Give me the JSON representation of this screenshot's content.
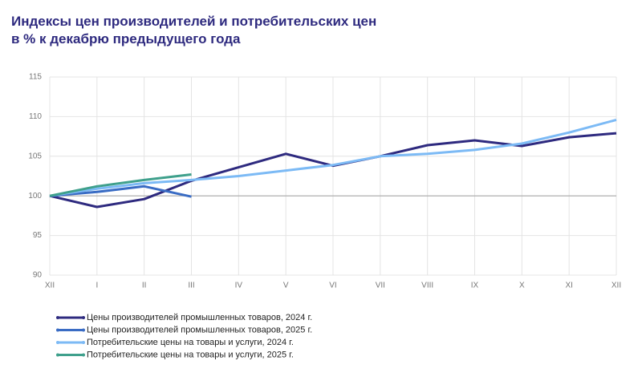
{
  "chart_data": {
    "type": "line",
    "title": "Индексы цен производителей и потребительских цен",
    "subtitle": "в % к декабрю предыдущего года",
    "categories": [
      "XII",
      "I",
      "II",
      "III",
      "IV",
      "V",
      "VI",
      "VII",
      "VIII",
      "IX",
      "X",
      "XI",
      "XII"
    ],
    "series": [
      {
        "name": "Цены производителей промышленных товаров, 2024 г.",
        "color": "#2e2a7f",
        "values": [
          100,
          98.6,
          99.6,
          101.9,
          103.6,
          105.3,
          103.8,
          105.0,
          106.4,
          107.0,
          106.3,
          107.4,
          107.9
        ]
      },
      {
        "name": "Цены производителей промышленных товаров, 2025 г.",
        "color": "#3a6cc4",
        "values": [
          100,
          100.5,
          101.2,
          99.9,
          null,
          null,
          null,
          null,
          null,
          null,
          null,
          null,
          null
        ]
      },
      {
        "name": "Потребительские цены на товары и услуги, 2024 г.",
        "color": "#7cbaf5",
        "values": [
          100,
          100.9,
          101.6,
          102.0,
          102.5,
          103.2,
          103.9,
          105.0,
          105.3,
          105.8,
          106.6,
          108.0,
          109.6
        ]
      },
      {
        "name": "Потребительские цены на товары и услуги, 2025 г.",
        "color": "#3fa08c",
        "values": [
          100,
          101.2,
          102.0,
          102.7,
          null,
          null,
          null,
          null,
          null,
          null,
          null,
          null,
          null
        ]
      }
    ],
    "ylim": [
      90,
      115
    ],
    "yticks": [
      90,
      95,
      100,
      105,
      110,
      115
    ],
    "grid": true,
    "hline": 100,
    "legend": "bottom"
  }
}
